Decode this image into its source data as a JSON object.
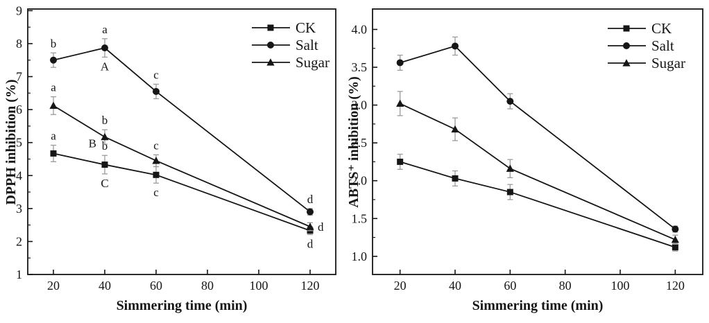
{
  "figure": {
    "background_color": "#ffffff",
    "ink_color": "#161616",
    "error_bar_color": "#9b9b9b"
  },
  "chart_data": [
    {
      "type": "line",
      "title": "",
      "xlabel": "Simmering time (min)",
      "ylabel": "DPPH inhibition (%)",
      "x": [
        20,
        40,
        60,
        120
      ],
      "xlim": [
        10,
        130
      ],
      "ylim": [
        1,
        9.05
      ],
      "grid": false,
      "legend_position": "upper right",
      "xticks": [
        "20",
        "40",
        "60",
        "80",
        "100",
        "120"
      ],
      "xtick_values": [
        20,
        40,
        60,
        80,
        100,
        120
      ],
      "ytick_labels": [
        "1",
        "2",
        "3",
        "4",
        "5",
        "6",
        "7",
        "8",
        "9"
      ],
      "ytick_values": [
        1,
        2,
        3,
        4,
        5,
        6,
        7,
        8,
        9
      ],
      "y_minor_step": 0.5,
      "series": [
        {
          "name": "CK",
          "marker": "square",
          "values": [
            4.67,
            4.33,
            4.02,
            2.33
          ],
          "errors": [
            0.25,
            0.28,
            0.25,
            0.12
          ],
          "point_labels": [
            [
              {
                "text": "a",
                "pos": "above"
              }
            ],
            [
              {
                "text": "b",
                "pos": "above"
              },
              {
                "text": "C",
                "pos": "below"
              }
            ],
            [
              {
                "text": "c",
                "pos": "below"
              }
            ],
            [
              {
                "text": "d",
                "pos": "below"
              }
            ]
          ]
        },
        {
          "name": "Salt",
          "marker": "circle",
          "values": [
            7.5,
            7.87,
            6.55,
            2.9
          ],
          "errors": [
            0.22,
            0.28,
            0.22,
            0.1
          ],
          "point_labels": [
            [
              {
                "text": "b",
                "pos": "above"
              }
            ],
            [
              {
                "text": "a",
                "pos": "above"
              },
              {
                "text": "A",
                "pos": "below"
              }
            ],
            [
              {
                "text": "c",
                "pos": "above"
              }
            ],
            [
              {
                "text": "d",
                "pos": "above"
              }
            ]
          ]
        },
        {
          "name": "Sugar",
          "marker": "triangle",
          "values": [
            6.12,
            5.17,
            4.45,
            2.45
          ],
          "errors": [
            0.27,
            0.22,
            0.18,
            0.12
          ],
          "point_labels": [
            [
              {
                "text": "a",
                "pos": "above"
              }
            ],
            [
              {
                "text": "b",
                "pos": "above"
              },
              {
                "text": "B",
                "pos": "left"
              }
            ],
            [
              {
                "text": "c",
                "pos": "above"
              }
            ],
            [
              {
                "text": "d",
                "pos": "right"
              }
            ]
          ]
        }
      ]
    },
    {
      "type": "line",
      "title": "",
      "xlabel": "Simmering time (min)",
      "ylabel": "ABTS⁺ inhibition (%)",
      "x": [
        20,
        40,
        60,
        120
      ],
      "xlim": [
        10,
        130
      ],
      "ylim": [
        0.76,
        4.27
      ],
      "grid": false,
      "legend_position": "upper right",
      "xticks": [
        "20",
        "40",
        "60",
        "80",
        "100",
        "120"
      ],
      "xtick_values": [
        20,
        40,
        60,
        80,
        100,
        120
      ],
      "ytick_labels": [
        "1.0",
        "1.5",
        "2.0",
        "2.5",
        "3.0",
        "3.5",
        "4.0"
      ],
      "ytick_values": [
        1.0,
        1.5,
        2.0,
        2.5,
        3.0,
        3.5,
        4.0
      ],
      "y_minor_step": 0.25,
      "series": [
        {
          "name": "CK",
          "marker": "square",
          "values": [
            2.25,
            2.03,
            1.85,
            1.12
          ],
          "errors": [
            0.1,
            0.1,
            0.1,
            0.05
          ],
          "point_labels": [
            [],
            [],
            [],
            []
          ]
        },
        {
          "name": "Salt",
          "marker": "circle",
          "values": [
            3.56,
            3.78,
            3.05,
            1.36
          ],
          "errors": [
            0.1,
            0.12,
            0.1,
            0.04
          ],
          "point_labels": [
            [],
            [],
            [],
            []
          ]
        },
        {
          "name": "Sugar",
          "marker": "triangle",
          "values": [
            3.02,
            2.68,
            2.16,
            1.22
          ],
          "errors": [
            0.16,
            0.15,
            0.12,
            0.06
          ],
          "point_labels": [
            [],
            [],
            [],
            []
          ]
        }
      ]
    }
  ]
}
